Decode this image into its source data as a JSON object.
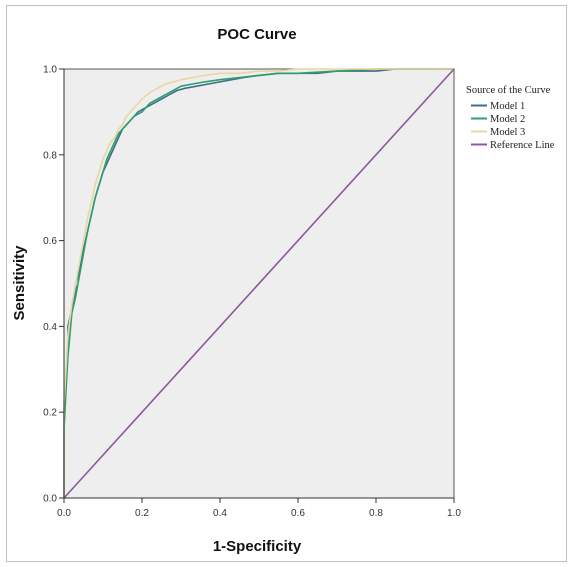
{
  "chart_data": {
    "type": "line",
    "title": "POC Curve",
    "xlabel": "1-Specificity",
    "ylabel": "Sensitivity",
    "xlim": [
      0,
      1
    ],
    "ylim": [
      0,
      1
    ],
    "xticks": [
      "0.0",
      "0.2",
      "0.4",
      "0.6",
      "0.8",
      "1.0"
    ],
    "yticks": [
      "0.0",
      "0.2",
      "0.4",
      "0.6",
      "0.8",
      "1.0"
    ],
    "legend_title": "Source of the Curve",
    "legend_position": "right",
    "grid": false,
    "plot_background": "#eeeeee",
    "series": [
      {
        "name": "Model 1",
        "color": "#3f6f86",
        "x": [
          0.0,
          0.0,
          0.005,
          0.01,
          0.01,
          0.02,
          0.03,
          0.03,
          0.04,
          0.05,
          0.06,
          0.07,
          0.08,
          0.09,
          0.1,
          0.11,
          0.12,
          0.13,
          0.14,
          0.15,
          0.17,
          0.19,
          0.21,
          0.23,
          0.25,
          0.27,
          0.29,
          0.31,
          0.34,
          0.37,
          0.4,
          0.43,
          0.46,
          0.5,
          0.55,
          0.6,
          0.65,
          0.7,
          0.75,
          0.8,
          0.85,
          0.9,
          0.95,
          1.0
        ],
        "y": [
          0.0,
          0.2,
          0.28,
          0.36,
          0.4,
          0.44,
          0.48,
          0.5,
          0.53,
          0.58,
          0.62,
          0.66,
          0.7,
          0.73,
          0.76,
          0.78,
          0.8,
          0.82,
          0.84,
          0.86,
          0.88,
          0.9,
          0.91,
          0.92,
          0.93,
          0.94,
          0.95,
          0.955,
          0.96,
          0.965,
          0.97,
          0.975,
          0.98,
          0.985,
          0.99,
          0.99,
          0.99,
          0.995,
          0.995,
          0.995,
          1.0,
          1.0,
          1.0,
          1.0
        ]
      },
      {
        "name": "Model 2",
        "color": "#2e9e6f",
        "x": [
          0.0,
          0.0,
          0.005,
          0.01,
          0.015,
          0.02,
          0.03,
          0.04,
          0.05,
          0.06,
          0.07,
          0.08,
          0.09,
          0.1,
          0.11,
          0.12,
          0.13,
          0.14,
          0.15,
          0.16,
          0.18,
          0.2,
          0.22,
          0.24,
          0.26,
          0.28,
          0.3,
          0.33,
          0.36,
          0.4,
          0.45,
          0.5,
          0.55,
          0.6,
          0.7,
          0.8,
          0.9,
          1.0
        ],
        "y": [
          0.0,
          0.16,
          0.25,
          0.33,
          0.38,
          0.43,
          0.47,
          0.52,
          0.57,
          0.62,
          0.66,
          0.7,
          0.73,
          0.76,
          0.79,
          0.81,
          0.83,
          0.85,
          0.86,
          0.87,
          0.89,
          0.9,
          0.92,
          0.93,
          0.94,
          0.95,
          0.96,
          0.965,
          0.97,
          0.975,
          0.98,
          0.985,
          0.99,
          0.99,
          0.995,
          1.0,
          1.0,
          1.0
        ]
      },
      {
        "name": "Model 3",
        "color": "#e8d7a0",
        "x": [
          0.0,
          0.0,
          0.005,
          0.01,
          0.02,
          0.03,
          0.04,
          0.05,
          0.06,
          0.07,
          0.08,
          0.09,
          0.1,
          0.11,
          0.12,
          0.13,
          0.14,
          0.15,
          0.16,
          0.18,
          0.2,
          0.22,
          0.24,
          0.26,
          0.28,
          0.3,
          0.33,
          0.36,
          0.4,
          0.45,
          0.5,
          0.55,
          0.6,
          0.7,
          0.8,
          0.9,
          1.0
        ],
        "y": [
          0.0,
          0.22,
          0.3,
          0.38,
          0.45,
          0.5,
          0.55,
          0.6,
          0.65,
          0.69,
          0.73,
          0.76,
          0.79,
          0.81,
          0.83,
          0.84,
          0.86,
          0.87,
          0.89,
          0.91,
          0.93,
          0.945,
          0.955,
          0.965,
          0.97,
          0.975,
          0.98,
          0.985,
          0.99,
          0.99,
          0.995,
          0.995,
          1.0,
          1.0,
          1.0,
          1.0,
          1.0
        ]
      },
      {
        "name": "Reference Line",
        "color": "#8a5a9a",
        "x": [
          0,
          1
        ],
        "y": [
          0,
          1
        ]
      }
    ]
  }
}
